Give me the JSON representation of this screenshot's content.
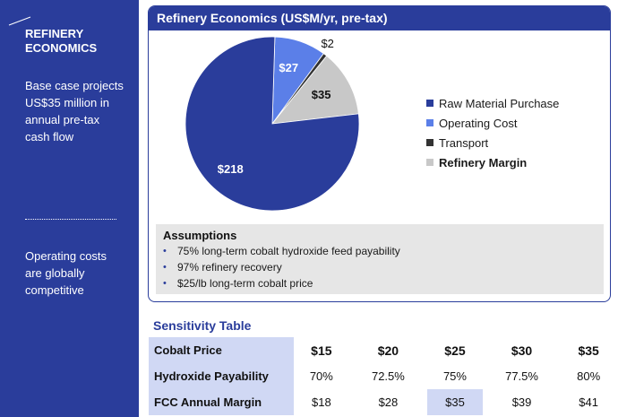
{
  "sidebar": {
    "title": "REFINERY ECONOMICS",
    "text1": "Base case projects US$35 million in annual pre-tax cash flow",
    "text2": "Operating costs are globally competitive"
  },
  "panel": {
    "title": "Refinery Economics (US$M/yr, pre-tax)"
  },
  "chart_data": {
    "type": "pie",
    "title": "Refinery Economics (US$M/yr, pre-tax)",
    "slices": [
      {
        "name": "Raw Material Purchase",
        "value": 218,
        "label": "$218",
        "color": "#2a3d9b",
        "label_color": "#ffffff"
      },
      {
        "name": "Operating Cost",
        "value": 27,
        "label": "$27",
        "color": "#5b7fe8",
        "label_color": "#ffffff"
      },
      {
        "name": "Transport",
        "value": 2,
        "label": "$2",
        "color": "#333333",
        "label_color": "#111111"
      },
      {
        "name": "Refinery Margin",
        "value": 35,
        "label": "$35",
        "color": "#c8c8c8",
        "label_color": "#111111"
      }
    ],
    "legend_placement": "right"
  },
  "assumptions": {
    "title": "Assumptions",
    "items": [
      "75% long-term cobalt hydroxide feed payability",
      "97% refinery recovery",
      "$25/lb long-term cobalt price"
    ]
  },
  "sensitivity": {
    "title": "Sensitivity Table",
    "rows": [
      {
        "label": "Cobalt Price",
        "values": [
          "$15",
          "$20",
          "$25",
          "$30",
          "$35"
        ]
      },
      {
        "label": "Hydroxide Payability",
        "values": [
          "70%",
          "72.5%",
          "75%",
          "77.5%",
          "80%"
        ]
      },
      {
        "label": "FCC Annual Margin",
        "values": [
          "$18",
          "$28",
          "$35",
          "$39",
          "$41"
        ]
      }
    ],
    "highlight_column": 2
  }
}
